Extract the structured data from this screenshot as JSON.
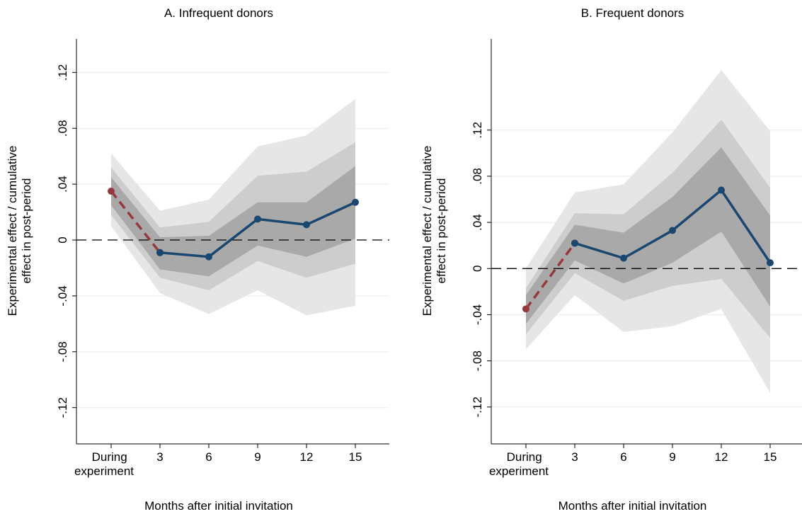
{
  "chart_data": [
    {
      "type": "line",
      "title": "A. Infrequent donors",
      "xlabel": "Months after initial invitation",
      "ylabel": [
        "Experimental effect / cumulative",
        "effect in post-period"
      ],
      "categories": [
        "During experiment",
        "3",
        "6",
        "9",
        "12",
        "15"
      ],
      "series": [
        {
          "color": "#963a40",
          "dash": true,
          "values": [
            0.035,
            -0.009,
            null,
            null,
            null,
            null
          ]
        },
        {
          "color": "#1a476f",
          "dash": false,
          "values": [
            null,
            -0.009,
            -0.012,
            0.015,
            0.011,
            0.027
          ]
        }
      ],
      "bands": [
        {
          "color": "#e6e6e6",
          "upper": [
            0.062,
            0.021,
            0.029,
            0.067,
            0.075,
            0.101
          ],
          "lower": [
            0.01,
            -0.038,
            -0.053,
            -0.036,
            -0.054,
            -0.047
          ]
        },
        {
          "color": "#cdcdcd",
          "upper": [
            0.052,
            0.009,
            0.013,
            0.046,
            0.049,
            0.07
          ],
          "lower": [
            0.018,
            -0.027,
            -0.036,
            -0.015,
            -0.027,
            -0.017
          ]
        },
        {
          "color": "#a9a9a9",
          "upper": [
            0.045,
            0.002,
            0.003,
            0.027,
            0.027,
            0.053
          ],
          "lower": [
            0.025,
            -0.021,
            -0.026,
            -0.004,
            -0.012,
            0.001
          ]
        }
      ],
      "ylim": [
        -0.146,
        0.144
      ],
      "yticks": [
        {
          "value": -0.12,
          "label": "-.12"
        },
        {
          "value": -0.08,
          "label": "-.08"
        },
        {
          "value": -0.04,
          "label": "-.04"
        },
        0,
        {
          "value": 0.04,
          "label": ".04"
        },
        {
          "value": 0.08,
          "label": ".08"
        },
        {
          "value": 0.12,
          "label": ".12"
        }
      ],
      "grid": true
    },
    {
      "type": "line",
      "title": "B. Frequent donors",
      "xlabel": "Months after initial invitation",
      "ylabel": [
        "Experimental effect / cumulative",
        "effect in post-period"
      ],
      "categories": [
        "During experiment",
        "3",
        "6",
        "9",
        "12",
        "15"
      ],
      "series": [
        {
          "color": "#963a40",
          "dash": true,
          "values": [
            -0.035,
            0.022,
            null,
            null,
            null,
            null
          ]
        },
        {
          "color": "#1a476f",
          "dash": false,
          "values": [
            null,
            0.022,
            0.009,
            0.033,
            0.068,
            0.005
          ]
        }
      ],
      "bands": [
        {
          "color": "#e6e6e6",
          "upper": [
            0.0,
            0.066,
            0.073,
            0.118,
            0.172,
            0.119
          ],
          "lower": [
            -0.07,
            -0.023,
            -0.055,
            -0.05,
            -0.035,
            -0.108
          ]
        },
        {
          "color": "#cdcdcd",
          "upper": [
            -0.017,
            0.048,
            0.047,
            0.083,
            0.129,
            0.07
          ],
          "lower": [
            -0.057,
            -0.004,
            -0.028,
            -0.015,
            -0.009,
            -0.06
          ]
        },
        {
          "color": "#a9a9a9",
          "upper": [
            -0.023,
            0.038,
            0.031,
            0.062,
            0.105,
            0.046
          ],
          "lower": [
            -0.048,
            0.007,
            -0.013,
            0.005,
            0.032,
            -0.033
          ]
        }
      ],
      "ylim": [
        -0.152,
        0.199
      ],
      "yticks": [
        {
          "value": -0.12,
          "label": "-.12"
        },
        {
          "value": -0.08,
          "label": "-.08"
        },
        {
          "value": -0.04,
          "label": "-.04"
        },
        0,
        {
          "value": 0.04,
          "label": ".04"
        },
        {
          "value": 0.08,
          "label": ".08"
        },
        {
          "value": 0.12,
          "label": ".12"
        }
      ],
      "grid": true
    }
  ]
}
